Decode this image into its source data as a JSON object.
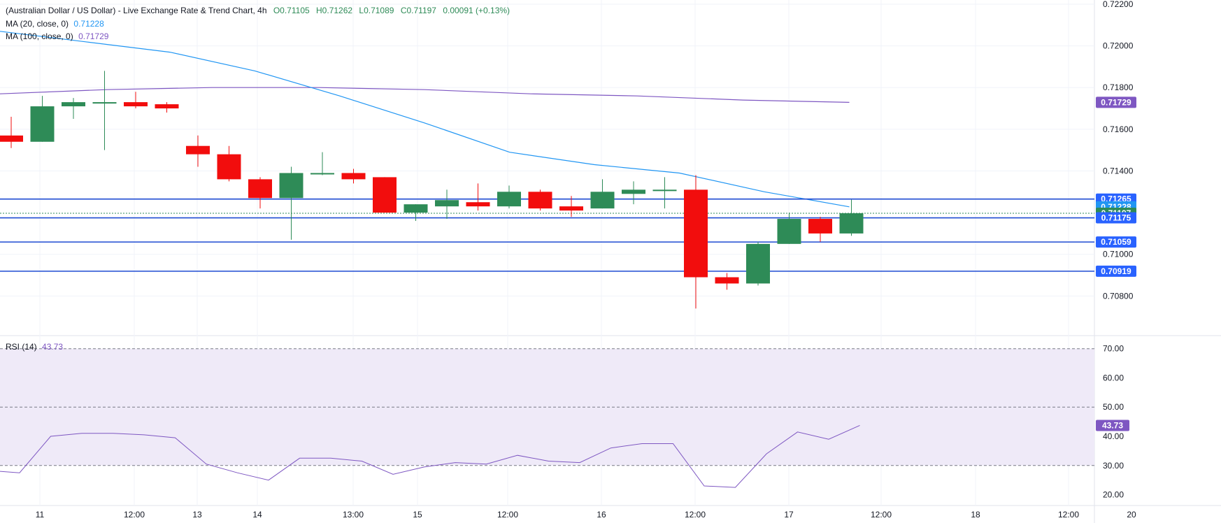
{
  "legend": {
    "title": "(Australian Dollar / US Dollar) - Live Exchange Rate & Trend Chart, 4h",
    "open": "O0.71105",
    "high": "H0.71262",
    "low": "L0.71089",
    "close": "C0.71197",
    "change": "0.00091 (+0.13%)",
    "ma20_label": "MA (20, close, 0)",
    "ma20_value": "0.71228",
    "ma100_label": "MA (100, close, 0)",
    "ma100_value": "0.71729",
    "rsi_label": "RSI (14)",
    "rsi_value": "43.73"
  },
  "colors": {
    "up": "#2e8b57",
    "down": "#f20d0d",
    "ma20": "#2196f3",
    "ma100": "#7e57c2",
    "hline": "#1e4bd2",
    "rsi": "#7e57c2",
    "rsi_band": "#efeaf8",
    "grid": "#f0f3fa"
  },
  "chart_data": [
    {
      "type": "candlestick",
      "ylim": [
        0.7062,
        0.722
      ],
      "y_ticks": [
        "0.72200",
        "0.72000",
        "0.71800",
        "0.71600",
        "0.71400",
        "0.71000",
        "0.70800"
      ],
      "x_ticks": [
        "11",
        "12:00",
        "13",
        "14",
        "13:00",
        "15",
        "12:00",
        "16",
        "12:00",
        "17",
        "12:00",
        "18",
        "12:00",
        "20"
      ],
      "candles": [
        {
          "o": 0.7157,
          "h": 0.7166,
          "l": 0.7151,
          "c": 0.7154
        },
        {
          "o": 0.7154,
          "h": 0.7176,
          "l": 0.7154,
          "c": 0.7171
        },
        {
          "o": 0.7171,
          "h": 0.7175,
          "l": 0.7165,
          "c": 0.7173
        },
        {
          "o": 0.7173,
          "h": 0.7188,
          "l": 0.715,
          "c": 0.7173
        },
        {
          "o": 0.7173,
          "h": 0.7178,
          "l": 0.717,
          "c": 0.7171
        },
        {
          "o": 0.7172,
          "h": 0.7173,
          "l": 0.7168,
          "c": 0.717
        },
        {
          "o": 0.7152,
          "h": 0.7157,
          "l": 0.7142,
          "c": 0.7148
        },
        {
          "o": 0.7148,
          "h": 0.7152,
          "l": 0.7135,
          "c": 0.7136
        },
        {
          "o": 0.7136,
          "h": 0.7137,
          "l": 0.7122,
          "c": 0.7127
        },
        {
          "o": 0.7127,
          "h": 0.7142,
          "l": 0.7107,
          "c": 0.7139
        },
        {
          "o": 0.7139,
          "h": 0.7149,
          "l": 0.7138,
          "c": 0.7139
        },
        {
          "o": 0.7139,
          "h": 0.7141,
          "l": 0.7134,
          "c": 0.7136
        },
        {
          "o": 0.7137,
          "h": 0.7137,
          "l": 0.712,
          "c": 0.712
        },
        {
          "o": 0.712,
          "h": 0.7124,
          "l": 0.7116,
          "c": 0.7124
        },
        {
          "o": 0.7123,
          "h": 0.7131,
          "l": 0.7117,
          "c": 0.7126
        },
        {
          "o": 0.7125,
          "h": 0.7134,
          "l": 0.7121,
          "c": 0.7123
        },
        {
          "o": 0.7123,
          "h": 0.7133,
          "l": 0.7122,
          "c": 0.713
        },
        {
          "o": 0.713,
          "h": 0.7131,
          "l": 0.7121,
          "c": 0.7122
        },
        {
          "o": 0.7123,
          "h": 0.7128,
          "l": 0.7118,
          "c": 0.7121
        },
        {
          "o": 0.7122,
          "h": 0.7136,
          "l": 0.7122,
          "c": 0.713
        },
        {
          "o": 0.7129,
          "h": 0.7135,
          "l": 0.7124,
          "c": 0.7131
        },
        {
          "o": 0.7131,
          "h": 0.7137,
          "l": 0.7122,
          "c": 0.7131
        },
        {
          "o": 0.7131,
          "h": 0.7138,
          "l": 0.7074,
          "c": 0.7089
        },
        {
          "o": 0.7089,
          "h": 0.7091,
          "l": 0.7083,
          "c": 0.7086
        },
        {
          "o": 0.7086,
          "h": 0.7106,
          "l": 0.7085,
          "c": 0.7105
        },
        {
          "o": 0.7105,
          "h": 0.712,
          "l": 0.7105,
          "c": 0.7117
        },
        {
          "o": 0.7117,
          "h": 0.7118,
          "l": 0.7106,
          "c": 0.711
        },
        {
          "o": 0.711,
          "h": 0.71262,
          "l": 0.71089,
          "c": 0.71197
        }
      ],
      "ma20": [
        0.7207,
        0.7202,
        0.7197,
        0.7188,
        0.7176,
        0.7163,
        0.7149,
        0.7143,
        0.7139,
        0.713,
        0.71228
      ],
      "ma100": [
        0.7177,
        0.7179,
        0.718,
        0.718,
        0.7179,
        0.7177,
        0.7176,
        0.7174,
        0.71729
      ],
      "current_price": 0.71197,
      "horizontal_lines": [
        0.71265,
        0.71175,
        0.71059,
        0.70919
      ],
      "price_labels": [
        {
          "value": 0.71729,
          "text": "0.71729",
          "kind": "ma100"
        },
        {
          "value": 0.71265,
          "text": "0.71265",
          "kind": "hline"
        },
        {
          "value": 0.71228,
          "text": "0.71228",
          "kind": "ma20"
        },
        {
          "value": 0.71197,
          "text": "0.71197",
          "kind": "price"
        },
        {
          "value": 0.71175,
          "text": "0.71175",
          "kind": "hline"
        },
        {
          "value": 0.71059,
          "text": "0.71059",
          "kind": "hline"
        },
        {
          "value": 0.70919,
          "text": "0.70919",
          "kind": "hline"
        }
      ]
    },
    {
      "type": "line",
      "ylim": [
        17.5,
        74
      ],
      "y_ticks": [
        "70.00",
        "60.00",
        "50.00",
        "40.00",
        "30.00",
        "20.00"
      ],
      "band": [
        30,
        70
      ],
      "midline": 50,
      "values": [
        28,
        27.5,
        40,
        41,
        41,
        40.5,
        39.5,
        30.5,
        27.5,
        25,
        32.5,
        32.5,
        31.5,
        27,
        29.5,
        31,
        30.5,
        33.5,
        31.5,
        31,
        36,
        37.5,
        37.5,
        23,
        22.5,
        34,
        41.5,
        39,
        43.73
      ],
      "current_value": "43.73"
    }
  ]
}
